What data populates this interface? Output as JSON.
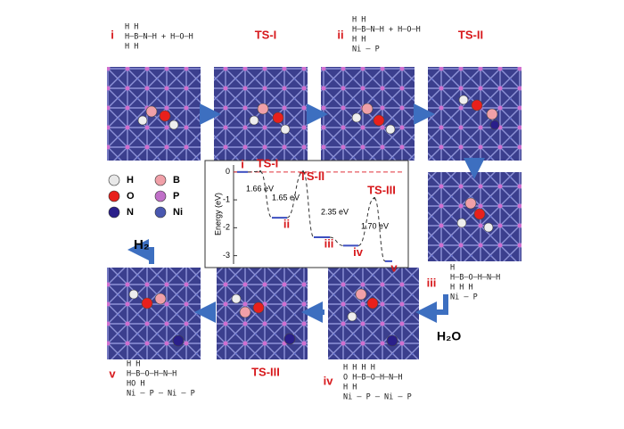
{
  "panels": [
    {
      "label": "i",
      "structure": [
        "H   H",
        "H–B–N–H + H–O–H",
        "H   H"
      ]
    },
    {
      "label": "TS-I"
    },
    {
      "label": "ii",
      "structure": [
        "H   H",
        "H–B–N–H + H–O–H",
        "H   H",
        "Ni – P"
      ]
    },
    {
      "label": "TS-II"
    },
    {
      "label": "iii",
      "structure": [
        "H",
        "H–B–O–H–N–H",
        "H       H  H",
        "Ni – P"
      ]
    },
    {
      "label": "TS-III"
    },
    {
      "label": "iv",
      "structure": [
        "H   H H H",
        "O   H–B–O–H–N–H",
        "H       H",
        "Ni – P – Ni – P"
      ]
    },
    {
      "label": "v",
      "structure": [
        "H  H",
        "H–B–O–H–N–H",
        "HO        H",
        "Ni – P – Ni – P"
      ]
    }
  ],
  "legend": [
    {
      "label": "H",
      "color": "#e8e8e8"
    },
    {
      "label": "O",
      "color": "#e8201c"
    },
    {
      "label": "N",
      "color": "#2a1f8a"
    },
    {
      "label": "B",
      "color": "#f0a0a8"
    },
    {
      "label": "P",
      "color": "#c070c8"
    },
    {
      "label": "Ni",
      "color": "#4a58b0"
    }
  ],
  "products": [
    "H₂",
    "H₂O"
  ],
  "energy_diagram": {
    "ylabel": "Energy (eV)",
    "ylim": [
      -3.3,
      0.25
    ],
    "yticks": [
      0,
      -1,
      -2,
      -3
    ],
    "states": [
      {
        "label": "i",
        "energy": 0
      },
      {
        "label": "TS-I",
        "energy": 0.02
      },
      {
        "label": "ii",
        "energy": -1.64
      },
      {
        "label": "TS-II",
        "energy": 0.01
      },
      {
        "label": "iii",
        "energy": -2.34
      },
      {
        "label": "iv",
        "energy": -2.64
      },
      {
        "label": "TS-III",
        "energy": -0.94
      },
      {
        "label": "v",
        "energy": -3.2
      }
    ],
    "barriers": [
      "1.66 eV",
      "1.65 eV",
      "2.35 eV",
      "1.70 eV"
    ]
  }
}
